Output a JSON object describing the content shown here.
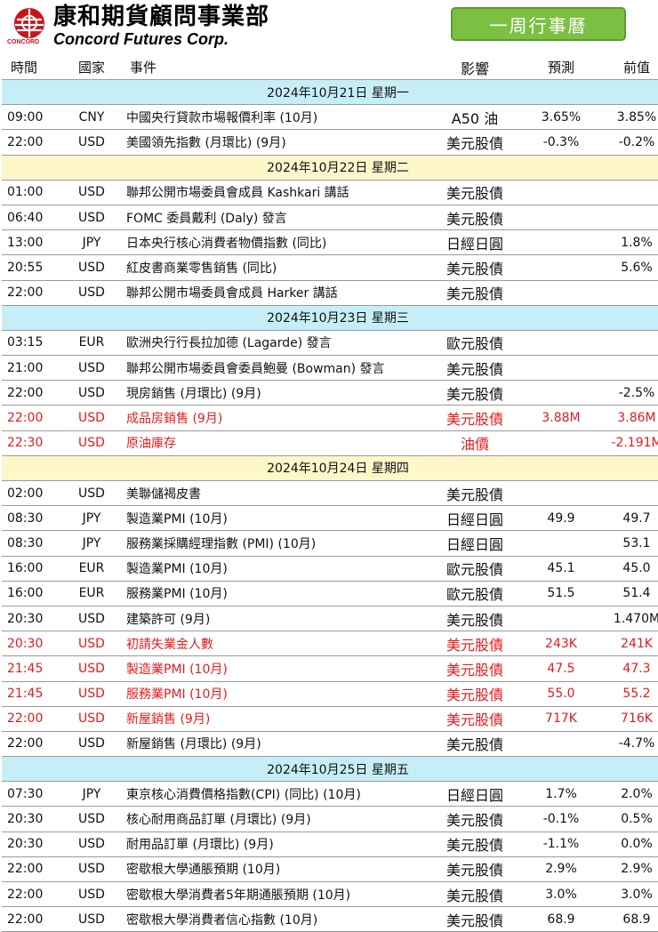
{
  "header": {
    "company_zh": "康和期貨顧問事業部",
    "company_en": "Concord Futures Corp.",
    "logo_text": "CONCORD",
    "calendar_button": "一周行事曆"
  },
  "columns": {
    "time": "時間",
    "country": "國家",
    "event": "事件",
    "impact": "影響",
    "forecast": "預測",
    "previous": "前值"
  },
  "days": [
    {
      "date": "2024年10月21日  星期一",
      "color": "cyan",
      "events": [
        {
          "time": "09:00",
          "country": "CNY",
          "event": "中國央行貸款市場報價利率 (10月)",
          "impact": "A50 油",
          "forecast": "3.65%",
          "previous": "3.85%",
          "highlight": false
        },
        {
          "time": "22:00",
          "country": "USD",
          "event": "美國領先指數 (月環比) (9月)",
          "impact": "美元股債",
          "forecast": "-0.3%",
          "previous": "-0.2%",
          "highlight": false
        }
      ]
    },
    {
      "date": "2024年10月22日  星期二",
      "color": "yellow",
      "events": [
        {
          "time": "01:00",
          "country": "USD",
          "event": "聯邦公開市場委員會成員 Kashkari 講話",
          "impact": "美元股債",
          "forecast": "",
          "previous": "",
          "highlight": false
        },
        {
          "time": "06:40",
          "country": "USD",
          "event": "FOMC 委員戴利 (Daly) 發言",
          "impact": "美元股債",
          "forecast": "",
          "previous": "",
          "highlight": false
        },
        {
          "time": "13:00",
          "country": "JPY",
          "event": "日本央行核心消費者物價指數 (同比)",
          "impact": "日經日圓",
          "forecast": "",
          "previous": "1.8%",
          "highlight": false
        },
        {
          "time": "20:55",
          "country": "USD",
          "event": "紅皮書商業零售銷售 (同比)",
          "impact": "美元股債",
          "forecast": "",
          "previous": "5.6%",
          "highlight": false
        },
        {
          "time": "22:00",
          "country": "USD",
          "event": "聯邦公開市場委員會成員 Harker 講話",
          "impact": "美元股債",
          "forecast": "",
          "previous": "",
          "highlight": false
        }
      ]
    },
    {
      "date": "2024年10月23日  星期三",
      "color": "cyan",
      "events": [
        {
          "time": "03:15",
          "country": "EUR",
          "event": "歐洲央行行長拉加德 (Lagarde) 發言",
          "impact": "歐元股債",
          "forecast": "",
          "previous": "",
          "highlight": false
        },
        {
          "time": "21:00",
          "country": "USD",
          "event": "聯邦公開市場委員會委員鮑曼 (Bowman) 發言",
          "impact": "美元股債",
          "forecast": "",
          "previous": "",
          "highlight": false
        },
        {
          "time": "22:00",
          "country": "USD",
          "event": "現房銷售 (月環比) (9月)",
          "impact": "美元股債",
          "forecast": "",
          "previous": "-2.5%",
          "highlight": false
        },
        {
          "time": "22:00",
          "country": "USD",
          "event": "成品房銷售 (9月)",
          "impact": "美元股債",
          "forecast": "3.88M",
          "previous": "3.86M",
          "highlight": true
        },
        {
          "time": "22:30",
          "country": "USD",
          "event": "原油庫存",
          "impact": "油價",
          "forecast": "",
          "previous": "-2.191M",
          "highlight": true
        }
      ]
    },
    {
      "date": "2024年10月24日  星期四",
      "color": "yellow",
      "events": [
        {
          "time": "02:00",
          "country": "USD",
          "event": "美聯儲褐皮書",
          "impact": "美元股債",
          "forecast": "",
          "previous": "",
          "highlight": false
        },
        {
          "time": "08:30",
          "country": "JPY",
          "event": "製造業PMI (10月)",
          "impact": "日經日圓",
          "forecast": "49.9",
          "previous": "49.7",
          "highlight": false
        },
        {
          "time": "08:30",
          "country": "JPY",
          "event": "服務業採購經理指數 (PMI) (10月)",
          "impact": "日經日圓",
          "forecast": "",
          "previous": "53.1",
          "highlight": false
        },
        {
          "time": "16:00",
          "country": "EUR",
          "event": "製造業PMI (10月)",
          "impact": "歐元股債",
          "forecast": "45.1",
          "previous": "45.0",
          "highlight": false
        },
        {
          "time": "16:00",
          "country": "EUR",
          "event": "服務業PMI (10月)",
          "impact": "歐元股債",
          "forecast": "51.5",
          "previous": "51.4",
          "highlight": false
        },
        {
          "time": "20:30",
          "country": "USD",
          "event": "建築許可 (9月)",
          "impact": "美元股債",
          "forecast": "",
          "previous": "1.470M",
          "highlight": false
        },
        {
          "time": "20:30",
          "country": "USD",
          "event": "初請失業金人數",
          "impact": "美元股債",
          "forecast": "243K",
          "previous": "241K",
          "highlight": true
        },
        {
          "time": "21:45",
          "country": "USD",
          "event": "製造業PMI (10月)",
          "impact": "美元股債",
          "forecast": "47.5",
          "previous": "47.3",
          "highlight": true
        },
        {
          "time": "21:45",
          "country": "USD",
          "event": "服務業PMI (10月)",
          "impact": "美元股債",
          "forecast": "55.0",
          "previous": "55.2",
          "highlight": true
        },
        {
          "time": "22:00",
          "country": "USD",
          "event": "新屋銷售 (9月)",
          "impact": "美元股債",
          "forecast": "717K",
          "previous": "716K",
          "highlight": true
        },
        {
          "time": "22:00",
          "country": "USD",
          "event": "新屋銷售 (月環比) (9月)",
          "impact": "美元股債",
          "forecast": "",
          "previous": "-4.7%",
          "highlight": false
        }
      ]
    },
    {
      "date": "2024年10月25日  星期五",
      "color": "cyan",
      "events": [
        {
          "time": "07:30",
          "country": "JPY",
          "event": "東京核心消費價格指數(CPI) (同比) (10月)",
          "impact": "日經日圓",
          "forecast": "1.7%",
          "previous": "2.0%",
          "highlight": false
        },
        {
          "time": "20:30",
          "country": "USD",
          "event": "核心耐用商品訂單 (月環比) (9月)",
          "impact": "美元股債",
          "forecast": "-0.1%",
          "previous": "0.5%",
          "highlight": false
        },
        {
          "time": "20:30",
          "country": "USD",
          "event": "耐用品訂單 (月環比) (9月)",
          "impact": "美元股債",
          "forecast": "-1.1%",
          "previous": "0.0%",
          "highlight": false
        },
        {
          "time": "22:00",
          "country": "USD",
          "event": "密歇根大學通脹預期 (10月)",
          "impact": "美元股債",
          "forecast": "2.9%",
          "previous": "2.9%",
          "highlight": false
        },
        {
          "time": "22:00",
          "country": "USD",
          "event": "密歇根大學消費者5年期通脹預期 (10月)",
          "impact": "美元股債",
          "forecast": "3.0%",
          "previous": "3.0%",
          "highlight": false
        },
        {
          "time": "22:00",
          "country": "USD",
          "event": "密歇根大學消費者信心指數 (10月)",
          "impact": "美元股債",
          "forecast": "68.9",
          "previous": "68.9",
          "highlight": false
        }
      ]
    }
  ]
}
